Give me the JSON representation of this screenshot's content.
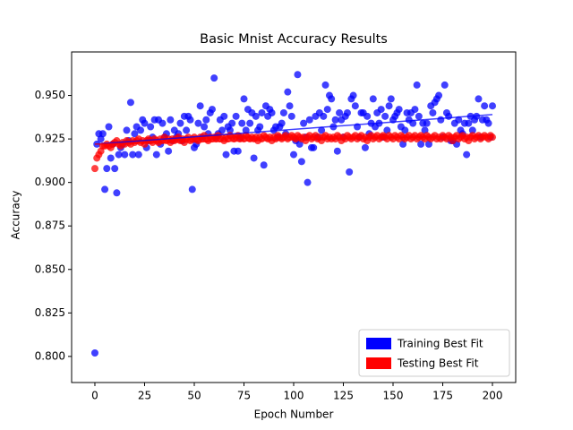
{
  "chart_data": {
    "type": "scatter",
    "title": "Basic Mnist Accuracy Results",
    "x_label": "Epoch Number",
    "y_label": "Accuracy",
    "x": [
      0,
      1,
      2,
      3,
      4,
      5,
      6,
      7,
      8,
      9,
      10,
      11,
      12,
      13,
      14,
      15,
      16,
      17,
      18,
      19,
      20,
      21,
      22,
      23,
      24,
      25,
      26,
      27,
      28,
      29,
      30,
      31,
      32,
      33,
      34,
      35,
      36,
      37,
      38,
      39,
      40,
      41,
      42,
      43,
      44,
      45,
      46,
      47,
      48,
      49,
      50,
      51,
      52,
      53,
      54,
      55,
      56,
      57,
      58,
      59,
      60,
      61,
      62,
      63,
      64,
      65,
      66,
      67,
      68,
      69,
      70,
      71,
      72,
      73,
      74,
      75,
      76,
      77,
      78,
      79,
      80,
      81,
      82,
      83,
      84,
      85,
      86,
      87,
      88,
      89,
      90,
      91,
      92,
      93,
      94,
      95,
      96,
      97,
      98,
      99,
      100,
      101,
      102,
      103,
      104,
      105,
      106,
      107,
      108,
      109,
      110,
      111,
      112,
      113,
      114,
      115,
      116,
      117,
      118,
      119,
      120,
      121,
      122,
      123,
      124,
      125,
      126,
      127,
      128,
      129,
      130,
      131,
      132,
      133,
      134,
      135,
      136,
      137,
      138,
      139,
      140,
      141,
      142,
      143,
      144,
      145,
      146,
      147,
      148,
      149,
      150,
      151,
      152,
      153,
      154,
      155,
      156,
      157,
      158,
      159,
      160,
      161,
      162,
      163,
      164,
      165,
      166,
      167,
      168,
      169,
      170,
      171,
      172,
      173,
      174,
      175,
      176,
      177,
      178,
      179,
      180,
      181,
      182,
      183,
      184,
      185,
      186,
      187,
      188,
      189,
      190,
      191,
      192,
      193,
      194,
      195,
      196,
      197,
      198,
      199,
      200
    ],
    "series": [
      {
        "name": "Training Best Fit",
        "color": "#0000ff",
        "values": [
          0.802,
          0.922,
          0.928,
          0.925,
          0.928,
          0.896,
          0.908,
          0.932,
          0.914,
          0.922,
          0.908,
          0.894,
          0.916,
          0.92,
          0.922,
          0.916,
          0.93,
          0.924,
          0.946,
          0.916,
          0.928,
          0.932,
          0.916,
          0.93,
          0.936,
          0.934,
          0.92,
          0.924,
          0.932,
          0.926,
          0.936,
          0.916,
          0.936,
          0.922,
          0.934,
          0.926,
          0.928,
          0.918,
          0.936,
          0.924,
          0.93,
          0.926,
          0.928,
          0.934,
          0.924,
          0.938,
          0.93,
          0.938,
          0.936,
          0.896,
          0.92,
          0.922,
          0.934,
          0.944,
          0.926,
          0.932,
          0.936,
          0.928,
          0.94,
          0.942,
          0.96,
          0.926,
          0.928,
          0.936,
          0.93,
          0.938,
          0.916,
          0.932,
          0.93,
          0.934,
          0.918,
          0.938,
          0.918,
          0.926,
          0.934,
          0.948,
          0.93,
          0.942,
          0.934,
          0.94,
          0.914,
          0.938,
          0.93,
          0.932,
          0.94,
          0.91,
          0.944,
          0.938,
          0.942,
          0.94,
          0.93,
          0.932,
          0.926,
          0.932,
          0.934,
          0.94,
          0.928,
          0.952,
          0.944,
          0.938,
          0.916,
          0.924,
          0.962,
          0.922,
          0.912,
          0.934,
          0.926,
          0.9,
          0.936,
          0.92,
          0.92,
          0.938,
          0.926,
          0.94,
          0.93,
          0.938,
          0.956,
          0.942,
          0.95,
          0.948,
          0.932,
          0.936,
          0.918,
          0.94,
          0.936,
          0.926,
          0.938,
          0.94,
          0.906,
          0.948,
          0.95,
          0.944,
          0.932,
          0.926,
          0.94,
          0.94,
          0.92,
          0.938,
          0.928,
          0.934,
          0.948,
          0.932,
          0.94,
          0.934,
          0.942,
          0.926,
          0.938,
          0.93,
          0.944,
          0.948,
          0.936,
          0.938,
          0.94,
          0.942,
          0.932,
          0.922,
          0.93,
          0.94,
          0.936,
          0.94,
          0.934,
          0.942,
          0.956,
          0.938,
          0.922,
          0.934,
          0.93,
          0.934,
          0.922,
          0.944,
          0.94,
          0.946,
          0.948,
          0.95,
          0.936,
          0.926,
          0.956,
          0.94,
          0.938,
          0.924,
          0.924,
          0.934,
          0.922,
          0.936,
          0.93,
          0.928,
          0.934,
          0.916,
          0.934,
          0.938,
          0.93,
          0.936,
          0.938,
          0.948,
          0.926,
          0.936,
          0.944,
          0.936,
          0.934,
          0.926,
          0.944
        ],
        "fit_x": [
          0,
          200
        ],
        "fit_values": [
          0.922,
          0.939
        ]
      },
      {
        "name": "Testing Best Fit",
        "color": "#ff0000",
        "values": [
          0.908,
          0.914,
          0.916,
          0.918,
          0.921,
          0.921,
          0.922,
          0.921,
          0.92,
          0.922,
          0.923,
          0.924,
          0.922,
          0.921,
          0.923,
          0.922,
          0.924,
          0.923,
          0.922,
          0.924,
          0.923,
          0.924,
          0.925,
          0.923,
          0.924,
          0.922,
          0.924,
          0.925,
          0.924,
          0.923,
          0.925,
          0.924,
          0.923,
          0.925,
          0.924,
          0.926,
          0.924,
          0.925,
          0.923,
          0.925,
          0.924,
          0.925,
          0.926,
          0.924,
          0.925,
          0.923,
          0.925,
          0.926,
          0.924,
          0.925,
          0.926,
          0.925,
          0.924,
          0.926,
          0.925,
          0.927,
          0.925,
          0.924,
          0.926,
          0.925,
          0.926,
          0.925,
          0.927,
          0.925,
          0.926,
          0.924,
          0.926,
          0.925,
          0.927,
          0.926,
          0.925,
          0.926,
          0.927,
          0.925,
          0.926,
          0.925,
          0.927,
          0.926,
          0.925,
          0.926,
          0.925,
          0.926,
          0.924,
          0.926,
          0.925,
          0.927,
          0.926,
          0.925,
          0.926,
          0.924,
          0.926,
          0.925,
          0.927,
          0.926,
          0.925,
          0.926,
          0.927,
          0.925,
          0.926,
          0.927,
          0.926,
          0.925,
          0.927,
          0.926,
          0.925,
          0.926,
          0.924,
          0.926,
          0.927,
          0.925,
          0.926,
          0.927,
          0.925,
          0.926,
          0.924,
          0.926,
          0.927,
          0.925,
          0.926,
          0.925,
          0.926,
          0.925,
          0.927,
          0.926,
          0.924,
          0.926,
          0.925,
          0.927,
          0.926,
          0.925,
          0.926,
          0.927,
          0.925,
          0.926,
          0.927,
          0.925,
          0.926,
          0.924,
          0.926,
          0.927,
          0.925,
          0.926,
          0.927,
          0.925,
          0.926,
          0.927,
          0.926,
          0.925,
          0.927,
          0.926,
          0.925,
          0.927,
          0.926,
          0.925,
          0.927,
          0.926,
          0.925,
          0.926,
          0.927,
          0.925,
          0.926,
          0.927,
          0.925,
          0.926,
          0.927,
          0.926,
          0.925,
          0.927,
          0.926,
          0.925,
          0.926,
          0.927,
          0.925,
          0.926,
          0.925,
          0.927,
          0.926,
          0.925,
          0.927,
          0.926,
          0.924,
          0.926,
          0.927,
          0.925,
          0.926,
          0.927,
          0.925,
          0.926,
          0.924,
          0.926,
          0.927,
          0.925,
          0.926,
          0.927,
          0.925,
          0.926,
          0.927,
          0.926,
          0.925,
          0.927,
          0.926
        ],
        "fit_x": [
          0,
          200
        ],
        "fit_values": [
          0.922,
          0.927
        ]
      }
    ],
    "xlim": [
      -11.7,
      211.7
    ],
    "xticks": [
      0,
      25,
      50,
      75,
      100,
      125,
      150,
      175,
      200
    ],
    "ylim": [
      0.785,
      0.975
    ],
    "yticks": [
      {
        "value": 0.8,
        "label": "0.800"
      },
      {
        "value": 0.825,
        "label": "0.825"
      },
      {
        "value": 0.85,
        "label": "0.850"
      },
      {
        "value": 0.875,
        "label": "0.875"
      },
      {
        "value": 0.9,
        "label": "0.900"
      },
      {
        "value": 0.925,
        "label": "0.925"
      },
      {
        "value": 0.95,
        "label": "0.950"
      }
    ],
    "grid": false,
    "legend": "lower right"
  }
}
